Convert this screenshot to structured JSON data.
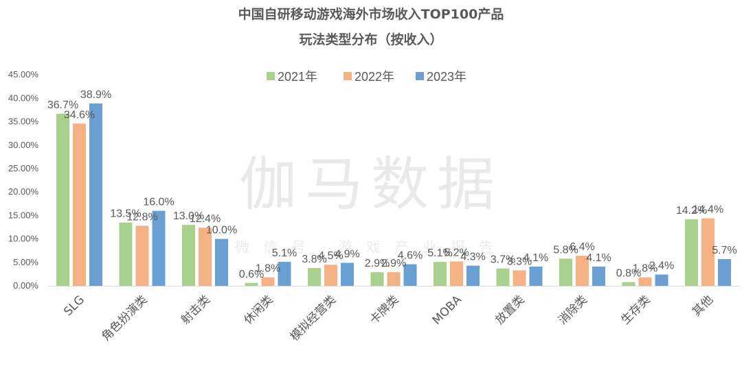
{
  "chart_data": {
    "type": "bar",
    "title": "中国自研移动游戏海外市场收入TOP100产品",
    "subtitle": "玩法类型分布（按收入）",
    "categories": [
      "SLG",
      "角色扮演类",
      "射击类",
      "休闲类",
      "模拟经营类",
      "卡牌类",
      "MOBA",
      "放置类",
      "消除类",
      "生存类",
      "其他"
    ],
    "series": [
      {
        "name": "2021年",
        "color": "#a9d18e",
        "values": [
          36.7,
          13.5,
          13.0,
          0.6,
          3.8,
          2.9,
          5.1,
          3.7,
          5.8,
          0.8,
          14.2
        ],
        "labels": [
          "36.7%",
          "13.5%",
          "13.0%",
          "0.6%",
          "3.8%",
          "2.9%",
          "5.1%",
          "3.7%",
          "5.8%",
          "0.8%",
          "14.2%"
        ]
      },
      {
        "name": "2022年",
        "color": "#f4b183",
        "values": [
          34.6,
          12.8,
          12.4,
          1.8,
          4.5,
          2.9,
          5.2,
          3.3,
          6.4,
          1.8,
          14.4
        ],
        "labels": [
          "34.6%",
          "12.8%",
          "12.4%",
          "1.8%",
          "4.5%",
          "2.9%",
          "5.2%",
          "3.3%",
          "6.4%",
          "1.8%",
          "14.4%"
        ]
      },
      {
        "name": "2023年",
        "color": "#6a9fd4",
        "values": [
          38.9,
          16.0,
          10.0,
          5.1,
          4.9,
          4.6,
          4.3,
          4.1,
          4.1,
          2.4,
          5.7
        ],
        "labels": [
          "38.9%",
          "16.0%",
          "10.0%",
          "5.1%",
          "4.9%",
          "4.6%",
          "4.3%",
          "4.1%",
          "4.1%",
          "2.4%",
          "5.7%"
        ]
      }
    ],
    "yticks": [
      "0.00%",
      "5.00%",
      "10.00%",
      "15.00%",
      "20.00%",
      "25.00%",
      "30.00%",
      "35.00%",
      "40.00%",
      "45.00%"
    ],
    "ylim": [
      0,
      45
    ],
    "xlabel": "",
    "ylabel": "",
    "legend_position": "top",
    "grid": false,
    "watermark": {
      "main": "伽马数据",
      "sub": "微信号 游戏产业报告"
    }
  }
}
